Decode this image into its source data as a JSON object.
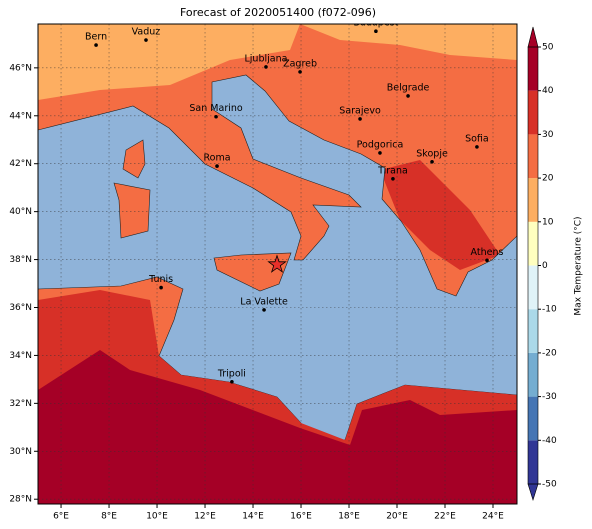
{
  "title": "Forecast of 2020051400 (f072-096)",
  "map": {
    "xlim": [
      5.04,
      25
    ],
    "ylim": [
      27.8,
      47.83
    ],
    "xticks": [
      {
        "value": 6,
        "label": "6°E"
      },
      {
        "value": 8,
        "label": "8°E"
      },
      {
        "value": 10,
        "label": "10°E"
      },
      {
        "value": 12,
        "label": "12°E"
      },
      {
        "value": 14,
        "label": "14°E"
      },
      {
        "value": 16,
        "label": "16°E"
      },
      {
        "value": 18,
        "label": "18°E"
      },
      {
        "value": 20,
        "label": "20°E"
      },
      {
        "value": 22,
        "label": "22°E"
      },
      {
        "value": 24,
        "label": "24°E"
      }
    ],
    "yticks": [
      {
        "value": 28,
        "label": "28°N"
      },
      {
        "value": 30,
        "label": "30°N"
      },
      {
        "value": 32,
        "label": "32°N"
      },
      {
        "value": 34,
        "label": "34°N"
      },
      {
        "value": 36,
        "label": "36°N"
      },
      {
        "value": 38,
        "label": "38°N"
      },
      {
        "value": 40,
        "label": "40°N"
      },
      {
        "value": 42,
        "label": "42°N"
      },
      {
        "value": 44,
        "label": "44°N"
      },
      {
        "value": 46,
        "label": "46°N"
      }
    ],
    "grid": true,
    "cities": [
      {
        "name": "Bern",
        "lon": 7.46,
        "lat": 46.95
      },
      {
        "name": "Vaduz",
        "lon": 9.54,
        "lat": 47.16
      },
      {
        "name": "Budapest",
        "lon": 19.12,
        "lat": 47.53
      },
      {
        "name": "Ljubljana",
        "lon": 14.54,
        "lat": 46.04
      },
      {
        "name": "Zagreb",
        "lon": 15.96,
        "lat": 45.83
      },
      {
        "name": "Belgrade",
        "lon": 20.46,
        "lat": 44.83
      },
      {
        "name": "San Marino",
        "lon": 12.46,
        "lat": 43.96
      },
      {
        "name": "Sarajevo",
        "lon": 18.46,
        "lat": 43.87
      },
      {
        "name": "Sofia",
        "lon": 23.33,
        "lat": 42.7
      },
      {
        "name": "Podgorica",
        "lon": 19.29,
        "lat": 42.45
      },
      {
        "name": "Skopje",
        "lon": 21.46,
        "lat": 42.08
      },
      {
        "name": "Roma",
        "lon": 12.5,
        "lat": 41.9
      },
      {
        "name": "Tirana",
        "lon": 19.83,
        "lat": 41.37
      },
      {
        "name": "Athens",
        "lon": 23.75,
        "lat": 37.97
      },
      {
        "name": "Tunis",
        "lon": 10.17,
        "lat": 36.83
      },
      {
        "name": "La Valette",
        "lon": 14.46,
        "lat": 35.9
      },
      {
        "name": "Tripoli",
        "lon": 13.12,
        "lat": 32.9
      }
    ],
    "marker": {
      "lon": 15.0,
      "lat": 37.79
    }
  },
  "colorbar": {
    "label": "Max Temperature (°C)",
    "lim": [
      -50,
      50
    ],
    "ticks": [
      -50,
      -40,
      -30,
      -20,
      -10,
      0,
      10,
      20,
      30,
      40,
      50
    ],
    "colors": [
      "#313695",
      "#4575b4",
      "#74add1",
      "#abd9e9",
      "#e0f3f8",
      "#ffffbf",
      "#fdae61",
      "#f46d43",
      "#d73027",
      "#a50026"
    ]
  }
}
